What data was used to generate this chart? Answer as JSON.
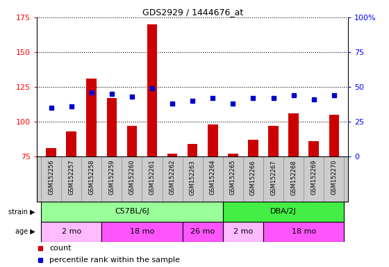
{
  "title": "GDS2929 / 1444676_at",
  "samples": [
    "GSM152256",
    "GSM152257",
    "GSM152258",
    "GSM152259",
    "GSM152260",
    "GSM152261",
    "GSM152262",
    "GSM152263",
    "GSM152264",
    "GSM152265",
    "GSM152266",
    "GSM152267",
    "GSM152268",
    "GSM152269",
    "GSM152270"
  ],
  "counts": [
    81,
    93,
    131,
    117,
    97,
    170,
    77,
    84,
    98,
    77,
    87,
    97,
    106,
    86,
    105
  ],
  "percentiles": [
    35,
    36,
    46,
    45,
    43,
    49,
    38,
    40,
    42,
    38,
    42,
    42,
    44,
    41,
    44
  ],
  "ylim_left": [
    75,
    175
  ],
  "ylim_right": [
    0,
    100
  ],
  "yticks_left": [
    75,
    100,
    125,
    150,
    175
  ],
  "yticks_right": [
    0,
    25,
    50,
    75,
    100
  ],
  "ytick_right_labels": [
    "0",
    "25",
    "50",
    "75",
    "100%"
  ],
  "bar_color": "#cc0000",
  "dot_color": "#0000cc",
  "bar_width": 0.5,
  "strain_groups": [
    {
      "label": "C57BL/6J",
      "start": 0,
      "end": 8,
      "color": "#99ff99"
    },
    {
      "label": "DBA/2J",
      "start": 9,
      "end": 14,
      "color": "#44ee44"
    }
  ],
  "age_groups": [
    {
      "label": "2 mo",
      "start": 0,
      "end": 2,
      "color": "#ffbbff"
    },
    {
      "label": "18 mo",
      "start": 3,
      "end": 6,
      "color": "#ff55ff"
    },
    {
      "label": "26 mo",
      "start": 7,
      "end": 8,
      "color": "#ff55ff"
    },
    {
      "label": "2 mo",
      "start": 9,
      "end": 10,
      "color": "#ffbbff"
    },
    {
      "label": "18 mo",
      "start": 11,
      "end": 14,
      "color": "#ff55ff"
    }
  ],
  "plot_bg": "#ffffff",
  "xtick_bg": "#cccccc",
  "legend_items": [
    {
      "label": "count",
      "color": "#cc0000"
    },
    {
      "label": "percentile rank within the sample",
      "color": "#0000cc"
    }
  ]
}
